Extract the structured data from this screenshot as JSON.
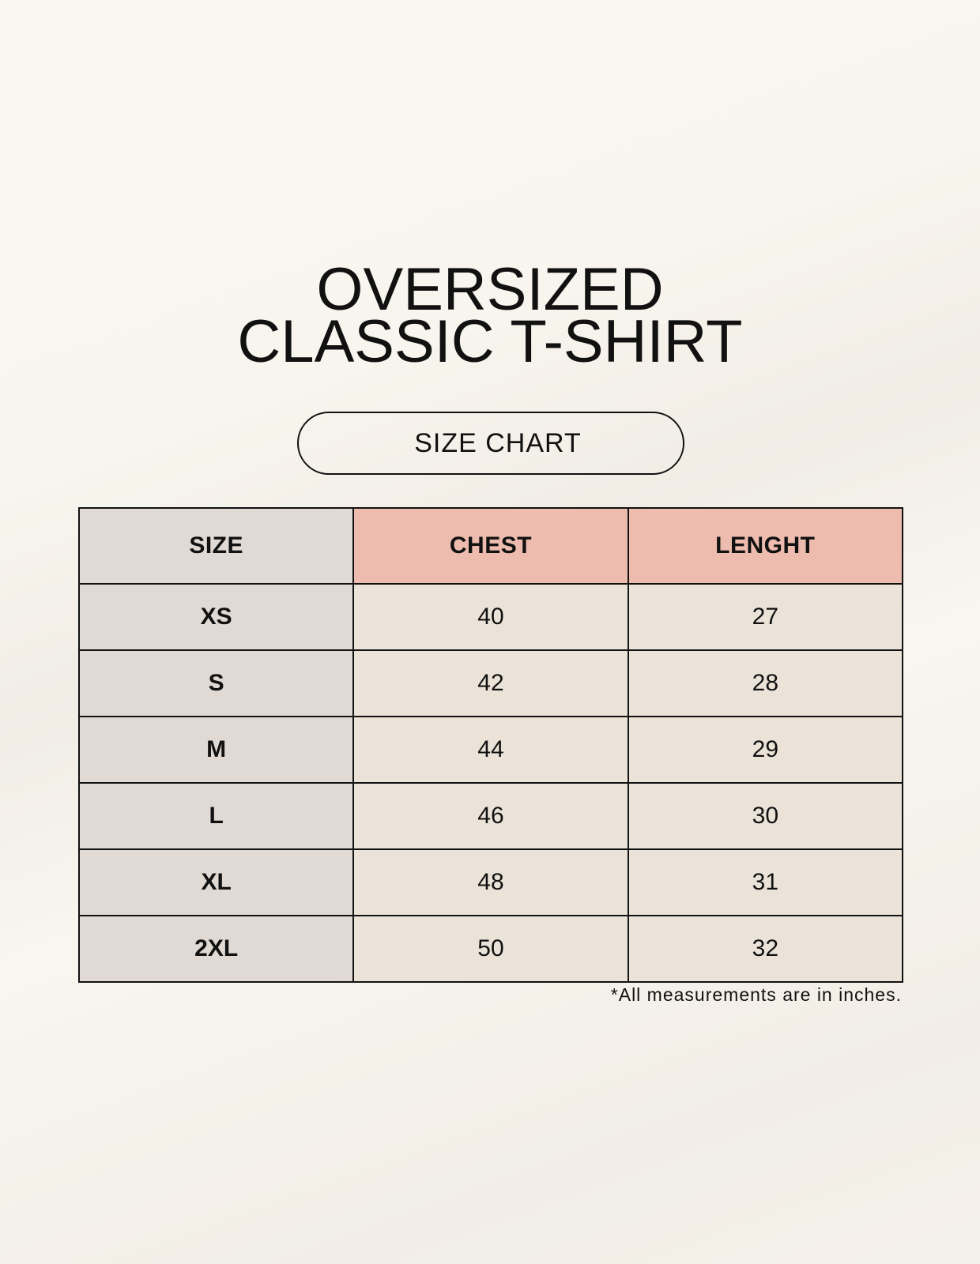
{
  "title": {
    "line1": "OVERSIZED",
    "line2": "CLASSIC T-SHIRT"
  },
  "badge": "SIZE CHART",
  "table": {
    "headers": [
      "SIZE",
      "CHEST",
      "LENGHT"
    ],
    "rows": [
      [
        "XS",
        "40",
        "27"
      ],
      [
        "S",
        "42",
        "28"
      ],
      [
        "M",
        "44",
        "29"
      ],
      [
        "L",
        "46",
        "30"
      ],
      [
        "XL",
        "48",
        "31"
      ],
      [
        "2XL",
        "50",
        "32"
      ]
    ]
  },
  "footnote": "*All measurements are in inches.",
  "colors": {
    "size_column": "#e1d9d3",
    "header_accent": "#eebcaf",
    "value_cells": "#ebe3d8",
    "background": "#f8f5ee"
  }
}
